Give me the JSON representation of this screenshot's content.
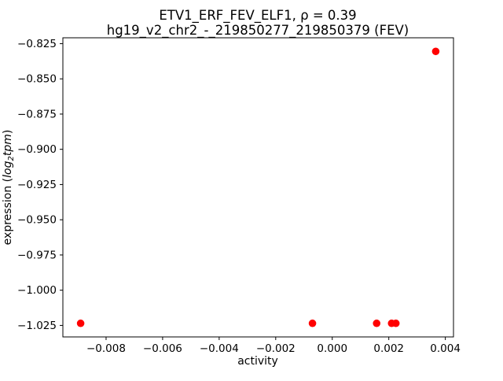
{
  "chart_data": {
    "type": "scatter",
    "title": "ETV1_ERF_FEV_ELF1, ρ = 0.39",
    "subtitle": "hg19_v2_chr2_-_219850277_219850379 (FEV)",
    "xlabel": "activity",
    "ylabel": {
      "prefix": "expression (",
      "math": "log",
      "sub": "2",
      "math_rest": "tpm",
      "suffix": ")"
    },
    "marker": {
      "color": "#ff0000",
      "radius_px": 4.8
    },
    "points": [
      {
        "x": -0.0089,
        "y": -1.0235
      },
      {
        "x": -0.0007,
        "y": -1.0235
      },
      {
        "x": 0.00157,
        "y": -1.0235
      },
      {
        "x": 0.0021,
        "y": -1.0235
      },
      {
        "x": 0.00225,
        "y": -1.0235
      },
      {
        "x": 0.00366,
        "y": -0.8305
      }
    ],
    "xticks": {
      "values": [
        -0.008,
        -0.006,
        -0.004,
        -0.002,
        0.0,
        0.002,
        0.004
      ],
      "labels": [
        "−0.008",
        "−0.006",
        "−0.004",
        "−0.002",
        "0.000",
        "0.002",
        "0.004"
      ]
    },
    "yticks": {
      "values": [
        -1.025,
        -1.0,
        -0.975,
        -0.95,
        -0.925,
        -0.9,
        -0.875,
        -0.85,
        -0.825
      ],
      "labels": [
        "−1.025",
        "−1.000",
        "−0.975",
        "−0.950",
        "−0.925",
        "−0.900",
        "−0.875",
        "−0.850",
        "−0.825"
      ]
    },
    "axes": {
      "xlim": [
        -0.009528,
        0.004288
      ],
      "ylim": [
        -1.03315,
        -0.82085
      ],
      "background": "#ffffff",
      "spine_color": "#000000",
      "grid": "off",
      "legend": "none"
    }
  }
}
